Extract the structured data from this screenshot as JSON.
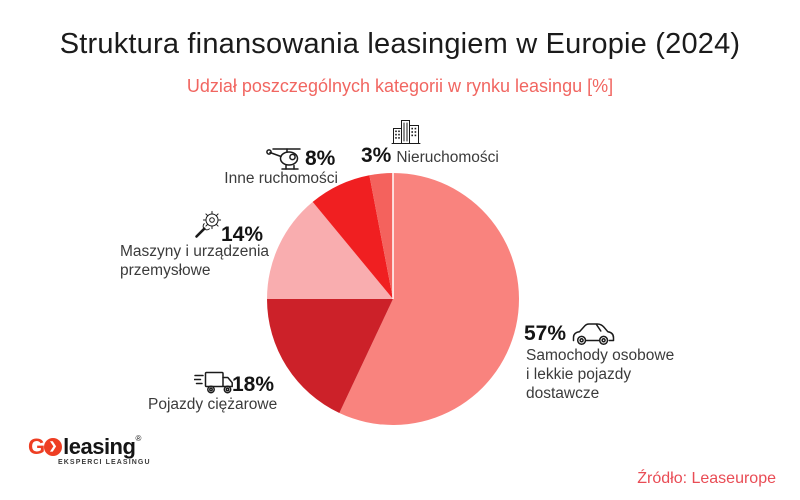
{
  "header": {
    "title": "Struktura finansowania leasingiem w Europie (2024)",
    "subtitle": "Udział poszczególnych kategorii w rynku leasingu [%]"
  },
  "chart_data": {
    "type": "pie",
    "title": "Struktura finansowania leasingiem w Europie (2024)",
    "unit": "%",
    "start_angle_deg": 0,
    "direction": "clockwise",
    "legend_position": "callouts-around-pie",
    "slices": [
      {
        "id": "cars",
        "label": "Samochody osobowe i lekkie pojazdy dostawcze",
        "value": 57,
        "color": "#F9837E",
        "icon": "car-icon"
      },
      {
        "id": "trucks",
        "label": "Pojazdy ciężarowe",
        "value": 18,
        "color": "#CC2129",
        "icon": "truck-icon"
      },
      {
        "id": "machines",
        "label": "Maszyny i urządzenia przemysłowe",
        "value": 14,
        "color": "#F9ADAF",
        "icon": "gear-wrench-icon"
      },
      {
        "id": "movables",
        "label": "Inne ruchomości",
        "value": 8,
        "color": "#F01F21",
        "icon": "helicopter-icon"
      },
      {
        "id": "real-estate",
        "label": "Nieruchomości",
        "value": 3,
        "color": "#F4625D",
        "icon": "buildings-icon"
      }
    ],
    "source": "Leaseurope"
  },
  "callouts": {
    "cars": {
      "pct": "57%",
      "lines": [
        "Samochody osobowe",
        "i lekkie pojazdy",
        "dostawcze"
      ]
    },
    "trucks": {
      "pct": "18%",
      "lines": [
        "Pojazdy ciężarowe"
      ]
    },
    "machines": {
      "pct": "14%",
      "lines": [
        "Maszyny i urządzenia",
        "przemysłowe"
      ]
    },
    "movables": {
      "pct": "8%",
      "lines": [
        "Inne ruchomości"
      ]
    },
    "real_estate": {
      "pct": "3%",
      "lines": [
        "Nieruchomości"
      ]
    }
  },
  "footer": {
    "logo": {
      "g": "G",
      "chevron": "❯",
      "wordmark": "leasing",
      "registered": "®",
      "tagline": "EKSPERCI LEASINGU",
      "brand_color": "#EE3E23"
    },
    "source": "Źródło: Leaseurope"
  },
  "colors": {
    "background": "#FFFFFF",
    "title_text": "#1B1B1B",
    "subtitle_text": "#F16661",
    "label_text": "#3B3B3B",
    "percent_text": "#141414",
    "source_text": "#E94C55",
    "icon_stroke": "#1B1B1B"
  }
}
